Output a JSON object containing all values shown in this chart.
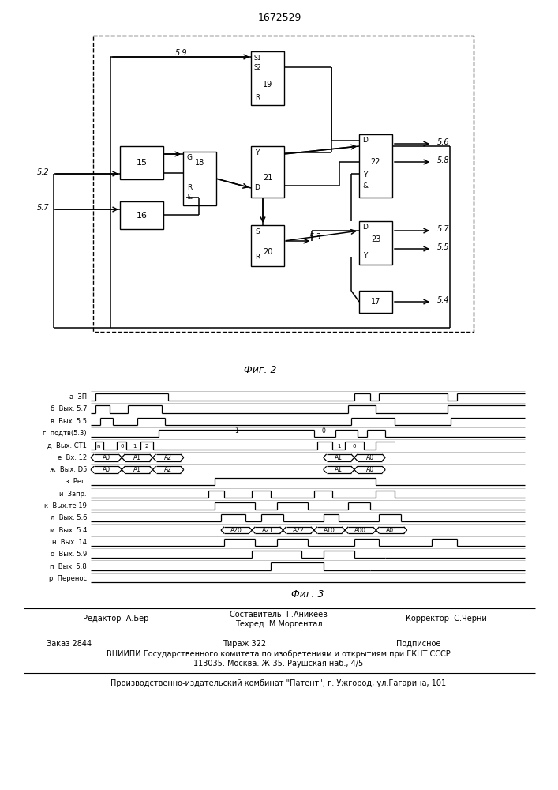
{
  "title_number": "1672529",
  "fig2_label": "Фиг. 2",
  "fig3_label": "Фиг. 3",
  "editor_line": "Редактор  А.Бер",
  "composer_line1": "Составитель  Г.Аникеев",
  "composer_line2": "Техред  М.Моргентал",
  "corrector_line": "Корректор  С.Черни",
  "order_line": "Заказ 2844",
  "tirazh_line": "Тираж 322",
  "podpisnoe_line": "Подписное",
  "vniipи_line": "ВНИИПИ Государственного комитета по изобретениям и открытиям при ГКНТ СССР",
  "address_line": "113035. Москва. Ж-35. Раушская наб., 4/5",
  "factory_line": "Производственно-издательский комбинат \"Патент\", г. Ужгород, ул.Гагарина, 101",
  "timing_labels": [
    "а  ЗП",
    "б  Вых. 5.7",
    "в  Вых. 5.5",
    "г  подтв(5.3)",
    "д  Вых. СТ1",
    "е  Вх. 12",
    "ж  Вых. D5",
    "з  Рег.",
    "и  Запр.",
    "к  Вых.те 19",
    "л  Вых. 5.б",
    "м  Вых. 5.4",
    "н  Вых. 14",
    "о  Вых. 5.9",
    "п  Вых. 5.8",
    "р  Перенос"
  ]
}
